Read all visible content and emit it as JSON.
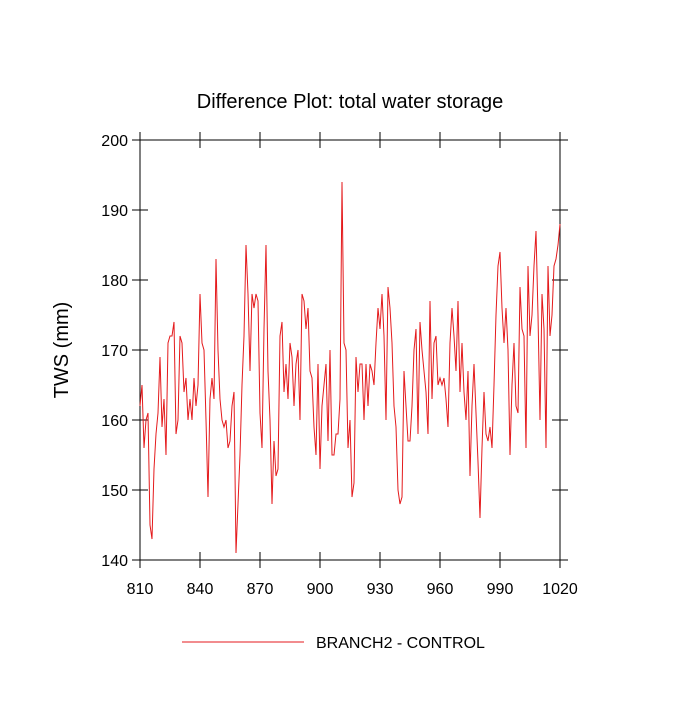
{
  "chart_data": {
    "type": "line",
    "title": "Difference Plot: total water storage",
    "y_label": "TWS  (mm)",
    "x": [
      810,
      811,
      812,
      813,
      814,
      815,
      816,
      817,
      818,
      819,
      820,
      821,
      822,
      823,
      824,
      825,
      826,
      827,
      828,
      829,
      830,
      831,
      832,
      833,
      834,
      835,
      836,
      837,
      838,
      839,
      840,
      841,
      842,
      843,
      844,
      845,
      846,
      847,
      848,
      849,
      850,
      851,
      852,
      853,
      854,
      855,
      856,
      857,
      858,
      859,
      860,
      861,
      862,
      863,
      864,
      865,
      866,
      867,
      868,
      869,
      870,
      871,
      872,
      873,
      874,
      875,
      876,
      877,
      878,
      879,
      880,
      881,
      882,
      883,
      884,
      885,
      886,
      887,
      888,
      889,
      890,
      891,
      892,
      893,
      894,
      895,
      896,
      897,
      898,
      899,
      900,
      901,
      902,
      903,
      904,
      905,
      906,
      907,
      908,
      909,
      910,
      911,
      912,
      913,
      914,
      915,
      916,
      917,
      918,
      919,
      920,
      921,
      922,
      923,
      924,
      925,
      926,
      927,
      928,
      929,
      930,
      931,
      932,
      933,
      934,
      935,
      936,
      937,
      938,
      939,
      940,
      941,
      942,
      943,
      944,
      945,
      946,
      947,
      948,
      949,
      950,
      951,
      952,
      953,
      954,
      955,
      956,
      957,
      958,
      959,
      960,
      961,
      962,
      963,
      964,
      965,
      966,
      967,
      968,
      969,
      970,
      971,
      972,
      973,
      974,
      975,
      976,
      977,
      978,
      979,
      980,
      981,
      982,
      983,
      984,
      985,
      986,
      987,
      988,
      989,
      990,
      991,
      992,
      993,
      994,
      995,
      996,
      997,
      998,
      999,
      1000,
      1001,
      1002,
      1003,
      1004,
      1005,
      1006,
      1007,
      1008,
      1009,
      1010,
      1011,
      1012,
      1013,
      1014,
      1015,
      1016,
      1017,
      1018,
      1019,
      1020
    ],
    "series": [
      {
        "name": "BRANCH2 - CONTROL",
        "color": "#e41a1c",
        "values": [
          162,
          165,
          156,
          160,
          161,
          145,
          143,
          153,
          158,
          161,
          169,
          159,
          163,
          155,
          171,
          172,
          172,
          174,
          158,
          160,
          172,
          171,
          164,
          166,
          160,
          163,
          160,
          166,
          162,
          165,
          178,
          171,
          170,
          160,
          149,
          163,
          166,
          163,
          183,
          170,
          163,
          160,
          159,
          160,
          156,
          157,
          162,
          164,
          141,
          148,
          155,
          165,
          172,
          185,
          178,
          167,
          178,
          176,
          178,
          177,
          161,
          156,
          173,
          185,
          167,
          160,
          148,
          157,
          152,
          153,
          172,
          174,
          164,
          168,
          163,
          171,
          169,
          162,
          168,
          170,
          160,
          178,
          177,
          173,
          176,
          167,
          166,
          159,
          155,
          168,
          153,
          162,
          165,
          168,
          157,
          170,
          155,
          155,
          158,
          158,
          163,
          194,
          171,
          170,
          156,
          160,
          149,
          151,
          169,
          164,
          168,
          168,
          160,
          168,
          162,
          168,
          167,
          165,
          171,
          176,
          173,
          178,
          172,
          160,
          179,
          176,
          171,
          162,
          159,
          150,
          148,
          149,
          167,
          162,
          157,
          157,
          162,
          170,
          173,
          158,
          174,
          170,
          167,
          164,
          158,
          177,
          163,
          171,
          172,
          165,
          166,
          165,
          166,
          163,
          159,
          171,
          176,
          172,
          167,
          177,
          164,
          171,
          164,
          160,
          167,
          152,
          162,
          168,
          161,
          154,
          146,
          156,
          164,
          158,
          157,
          159,
          156,
          165,
          175,
          182,
          184,
          176,
          171,
          176,
          170,
          155,
          165,
          171,
          162,
          161,
          179,
          173,
          172,
          156,
          182,
          172,
          175,
          182,
          187,
          175,
          160,
          178,
          173,
          156,
          182,
          172,
          175,
          182,
          183,
          185,
          188
        ]
      }
    ],
    "xlim": [
      810,
      1020
    ],
    "xticks": [
      810,
      840,
      870,
      900,
      930,
      960,
      990,
      1020
    ],
    "ylim": [
      140,
      200
    ],
    "yticks": [
      140,
      150,
      160,
      170,
      180,
      190,
      200
    ],
    "legend": "bottom"
  }
}
